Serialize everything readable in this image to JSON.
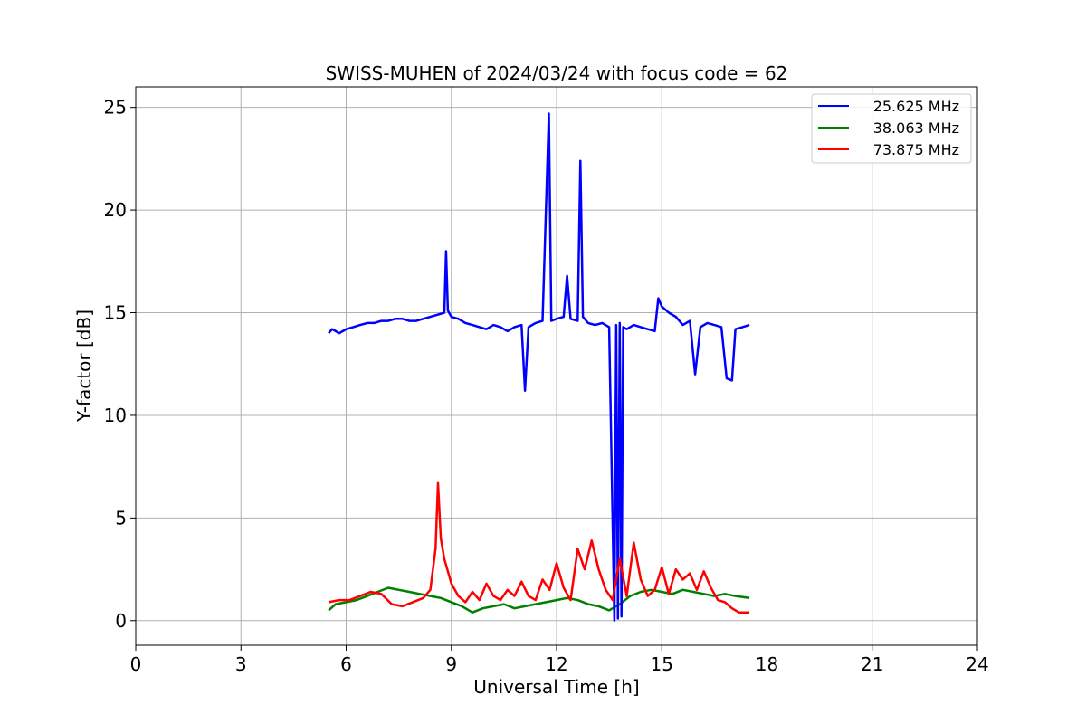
{
  "chart_data": {
    "type": "line",
    "title": "SWISS-MUHEN of 2024/03/24 with focus code = 62",
    "xlabel": "Universal Time [h]",
    "ylabel": "Y-factor [dB]",
    "xlim": [
      0,
      24
    ],
    "ylim": [
      -1.2,
      26
    ],
    "xticks": [
      0,
      3,
      6,
      9,
      12,
      15,
      18,
      21,
      24
    ],
    "yticks": [
      0,
      5,
      10,
      15,
      20,
      25
    ],
    "grid": true,
    "legend_position": "top-right",
    "series": [
      {
        "name": "25.625 MHz",
        "color": "#0000ff",
        "x": [
          5.5,
          5.6,
          5.7,
          5.8,
          6.0,
          6.2,
          6.4,
          6.6,
          6.8,
          7.0,
          7.2,
          7.4,
          7.6,
          7.8,
          8.0,
          8.2,
          8.4,
          8.6,
          8.8,
          8.85,
          8.9,
          9.0,
          9.2,
          9.4,
          9.6,
          9.8,
          10.0,
          10.2,
          10.4,
          10.6,
          10.8,
          11.0,
          11.1,
          11.2,
          11.4,
          11.6,
          11.78,
          11.85,
          12.0,
          12.2,
          12.3,
          12.4,
          12.6,
          12.68,
          12.75,
          12.9,
          13.1,
          13.3,
          13.5,
          13.65,
          13.7,
          13.75,
          13.8,
          13.85,
          13.9,
          14.0,
          14.2,
          14.4,
          14.6,
          14.8,
          14.9,
          15.0,
          15.2,
          15.4,
          15.6,
          15.8,
          15.95,
          16.1,
          16.3,
          16.5,
          16.7,
          16.85,
          17.0,
          17.1,
          17.3,
          17.5
        ],
        "y": [
          14.0,
          14.2,
          14.1,
          14.0,
          14.2,
          14.3,
          14.4,
          14.5,
          14.5,
          14.6,
          14.6,
          14.7,
          14.7,
          14.6,
          14.6,
          14.7,
          14.8,
          14.9,
          15.0,
          18.0,
          15.1,
          14.8,
          14.7,
          14.5,
          14.4,
          14.3,
          14.2,
          14.4,
          14.3,
          14.1,
          14.3,
          14.4,
          11.2,
          14.3,
          14.5,
          14.6,
          24.7,
          14.6,
          14.7,
          14.8,
          16.8,
          14.7,
          14.6,
          22.4,
          14.8,
          14.5,
          14.4,
          14.5,
          14.3,
          0.0,
          14.4,
          0.1,
          14.5,
          0.2,
          14.3,
          14.2,
          14.4,
          14.3,
          14.2,
          14.1,
          15.7,
          15.3,
          15.0,
          14.8,
          14.4,
          14.6,
          12.0,
          14.3,
          14.5,
          14.4,
          14.3,
          11.8,
          11.7,
          14.2,
          14.3,
          14.4
        ]
      },
      {
        "name": "38.063 MHz",
        "color": "#008000",
        "x": [
          5.5,
          5.7,
          6.0,
          6.3,
          6.6,
          6.9,
          7.2,
          7.5,
          7.8,
          8.1,
          8.4,
          8.7,
          9.0,
          9.3,
          9.6,
          9.9,
          10.2,
          10.5,
          10.8,
          11.1,
          11.4,
          11.7,
          12.0,
          12.3,
          12.6,
          12.9,
          13.2,
          13.5,
          13.8,
          14.1,
          14.4,
          14.7,
          15.0,
          15.3,
          15.6,
          15.9,
          16.2,
          16.5,
          16.8,
          17.1,
          17.5
        ],
        "y": [
          0.5,
          0.8,
          0.9,
          1.0,
          1.2,
          1.4,
          1.6,
          1.5,
          1.4,
          1.3,
          1.2,
          1.1,
          0.9,
          0.7,
          0.4,
          0.6,
          0.7,
          0.8,
          0.6,
          0.7,
          0.8,
          0.9,
          1.0,
          1.1,
          1.0,
          0.8,
          0.7,
          0.5,
          0.8,
          1.2,
          1.4,
          1.5,
          1.4,
          1.3,
          1.5,
          1.4,
          1.3,
          1.2,
          1.3,
          1.2,
          1.1
        ]
      },
      {
        "name": "73.875 MHz",
        "color": "#ff0000",
        "x": [
          5.5,
          5.8,
          6.1,
          6.4,
          6.7,
          7.0,
          7.3,
          7.6,
          7.9,
          8.2,
          8.4,
          8.55,
          8.62,
          8.7,
          8.8,
          9.0,
          9.2,
          9.4,
          9.6,
          9.8,
          10.0,
          10.2,
          10.4,
          10.6,
          10.8,
          11.0,
          11.2,
          11.4,
          11.6,
          11.8,
          12.0,
          12.2,
          12.4,
          12.6,
          12.8,
          13.0,
          13.2,
          13.4,
          13.6,
          13.8,
          14.0,
          14.2,
          14.4,
          14.6,
          14.8,
          15.0,
          15.2,
          15.4,
          15.6,
          15.8,
          16.0,
          16.2,
          16.4,
          16.6,
          16.8,
          17.0,
          17.2,
          17.5
        ],
        "y": [
          0.9,
          1.0,
          1.0,
          1.2,
          1.4,
          1.3,
          0.8,
          0.7,
          0.9,
          1.1,
          1.5,
          3.5,
          6.7,
          4.0,
          3.0,
          1.8,
          1.2,
          0.9,
          1.4,
          1.0,
          1.8,
          1.2,
          1.0,
          1.5,
          1.2,
          1.9,
          1.2,
          1.0,
          2.0,
          1.5,
          2.8,
          1.6,
          1.0,
          3.5,
          2.5,
          3.9,
          2.5,
          1.5,
          1.0,
          3.0,
          1.2,
          3.8,
          2.0,
          1.2,
          1.5,
          2.6,
          1.3,
          2.5,
          2.0,
          2.3,
          1.5,
          2.4,
          1.6,
          1.0,
          0.9,
          0.6,
          0.4,
          0.4
        ]
      }
    ]
  }
}
